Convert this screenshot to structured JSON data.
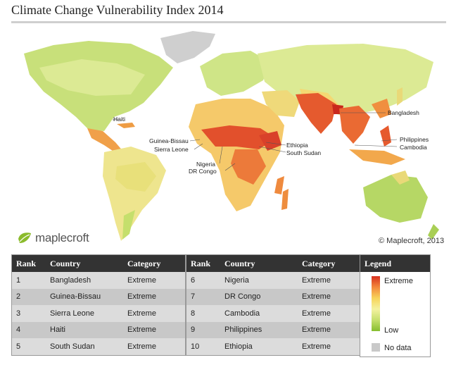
{
  "title": "Climate Change Vulnerability Index 2014",
  "brand": "maplecroft",
  "copyright": "© Maplecroft, 2013",
  "map_labels": {
    "haiti": "Haiti",
    "bangladesh": "Bangladesh",
    "guinea_bissau": "Guinea-Bissau",
    "sierra_leone": "Sierra Leone",
    "ethiopia": "Ethiopia",
    "south_sudan": "South Sudan",
    "nigeria": "Nigeria",
    "dr_congo": "DR Congo",
    "philippines": "Philippines",
    "cambodia": "Cambodia"
  },
  "table_headers": {
    "rank": "Rank",
    "country": "Country",
    "category": "Category"
  },
  "table_left": [
    {
      "rank": "1",
      "country": "Bangladesh",
      "category": "Extreme"
    },
    {
      "rank": "2",
      "country": "Guinea-Bissau",
      "category": "Extreme"
    },
    {
      "rank": "3",
      "country": "Sierra Leone",
      "category": "Extreme"
    },
    {
      "rank": "4",
      "country": "Haiti",
      "category": "Extreme"
    },
    {
      "rank": "5",
      "country": "South Sudan",
      "category": "Extreme"
    }
  ],
  "table_right": [
    {
      "rank": "6",
      "country": "Nigeria",
      "category": "Extreme"
    },
    {
      "rank": "7",
      "country": "DR Congo",
      "category": "Extreme"
    },
    {
      "rank": "8",
      "country": "Cambodia",
      "category": "Extreme"
    },
    {
      "rank": "9",
      "country": "Philippines",
      "category": "Extreme"
    },
    {
      "rank": "10",
      "country": "Ethiopia",
      "category": "Extreme"
    }
  ],
  "legend": {
    "title": "Legend",
    "high": "Extreme",
    "low": "Low",
    "no_data": "No data",
    "colors": [
      "#d7301f",
      "#f3883c",
      "#f7d35a",
      "#f4f2a0",
      "#c5df6c",
      "#86bd2f"
    ],
    "no_data_color": "#c9c9c9"
  }
}
